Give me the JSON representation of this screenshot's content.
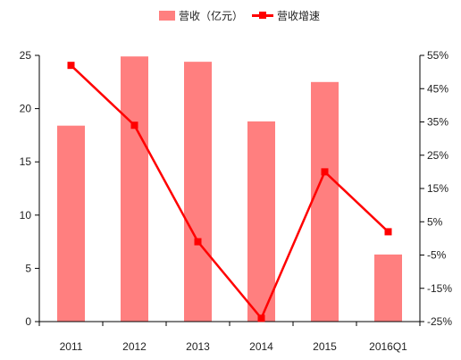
{
  "chart_data": {
    "type": "bar+line",
    "categories": [
      "2011",
      "2012",
      "2013",
      "2014",
      "2015",
      "2016Q1"
    ],
    "series": [
      {
        "name": "营收（亿元）",
        "type": "bar",
        "axis": "left",
        "values": [
          18.4,
          24.9,
          24.4,
          18.8,
          22.5,
          6.3
        ]
      },
      {
        "name": "营收增速",
        "type": "line",
        "axis": "right",
        "unit": "%",
        "values": [
          52,
          34,
          -1,
          -24,
          20,
          2
        ]
      }
    ],
    "left_axis": {
      "ylim": [
        0,
        25
      ],
      "ticks": [
        "0",
        "5",
        "10",
        "15",
        "20",
        "25"
      ]
    },
    "right_axis": {
      "ylim": [
        -25,
        55
      ],
      "ticks": [
        "-25%",
        "-15%",
        "-5%",
        "5%",
        "15%",
        "25%",
        "35%",
        "45%",
        "55%"
      ]
    },
    "colors": {
      "bar": "#ff7f7f",
      "line": "#ff0000"
    },
    "grid": false,
    "legend_position": "top-center"
  }
}
